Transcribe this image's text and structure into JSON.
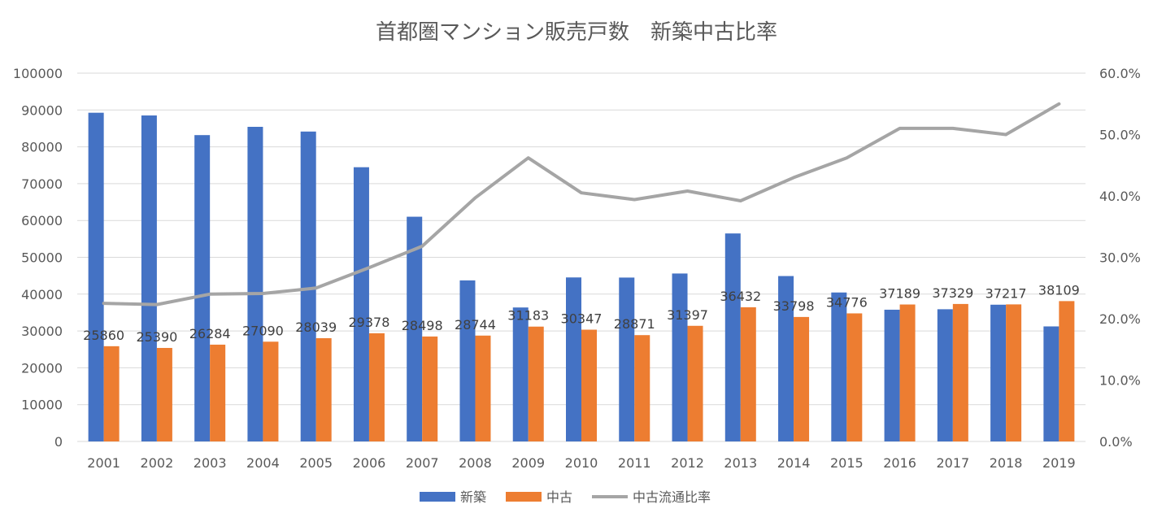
{
  "chart_data": {
    "type": "bar",
    "title": "首都圏マンション販売戸数　新築中古比率",
    "categories": [
      "2001",
      "2002",
      "2003",
      "2004",
      "2005",
      "2006",
      "2007",
      "2008",
      "2009",
      "2010",
      "2011",
      "2012",
      "2013",
      "2014",
      "2015",
      "2016",
      "2017",
      "2018",
      "2019"
    ],
    "series": [
      {
        "name": "新築",
        "kind": "bar",
        "axis": "left",
        "color": "#4472C4",
        "values": [
          89256,
          88516,
          83183,
          85429,
          84148,
          74463,
          61021,
          43733,
          36376,
          44535,
          44499,
          45602,
          56478,
          44913,
          40449,
          35772,
          35898,
          37132,
          31238
        ]
      },
      {
        "name": "中古",
        "kind": "bar",
        "axis": "left",
        "color": "#ED7D31",
        "values": [
          25860,
          25390,
          26284,
          27090,
          28039,
          29378,
          28498,
          28744,
          31183,
          30347,
          28871,
          31397,
          36432,
          33798,
          34776,
          37189,
          37329,
          37217,
          38109
        ],
        "data_labels": [
          "25860",
          "25390",
          "26284",
          "27090",
          "28039",
          "29378",
          "28498",
          "28744",
          "31183",
          "30347",
          "28871",
          "31397",
          "36432",
          "33798",
          "34776",
          "37189",
          "37329",
          "37217",
          "38109"
        ]
      },
      {
        "name": "中古流通比率",
        "kind": "line",
        "axis": "right",
        "color": "#A5A5A5",
        "values": [
          22.5,
          22.3,
          24.0,
          24.1,
          25.0,
          28.3,
          31.8,
          39.7,
          46.2,
          40.5,
          39.4,
          40.8,
          39.2,
          43.0,
          46.2,
          51.0,
          51.0,
          50.0,
          55.0
        ]
      }
    ],
    "y_left": {
      "min": 0,
      "max": 100000,
      "ticks": [
        "0",
        "10000",
        "20000",
        "30000",
        "40000",
        "50000",
        "60000",
        "70000",
        "80000",
        "90000",
        "100000"
      ]
    },
    "y_right": {
      "min": 0,
      "max": 60,
      "ticks": [
        "0.0%",
        "10.0%",
        "20.0%",
        "30.0%",
        "40.0%",
        "50.0%",
        "60.0%"
      ]
    },
    "grid": true,
    "legend_position": "bottom"
  }
}
